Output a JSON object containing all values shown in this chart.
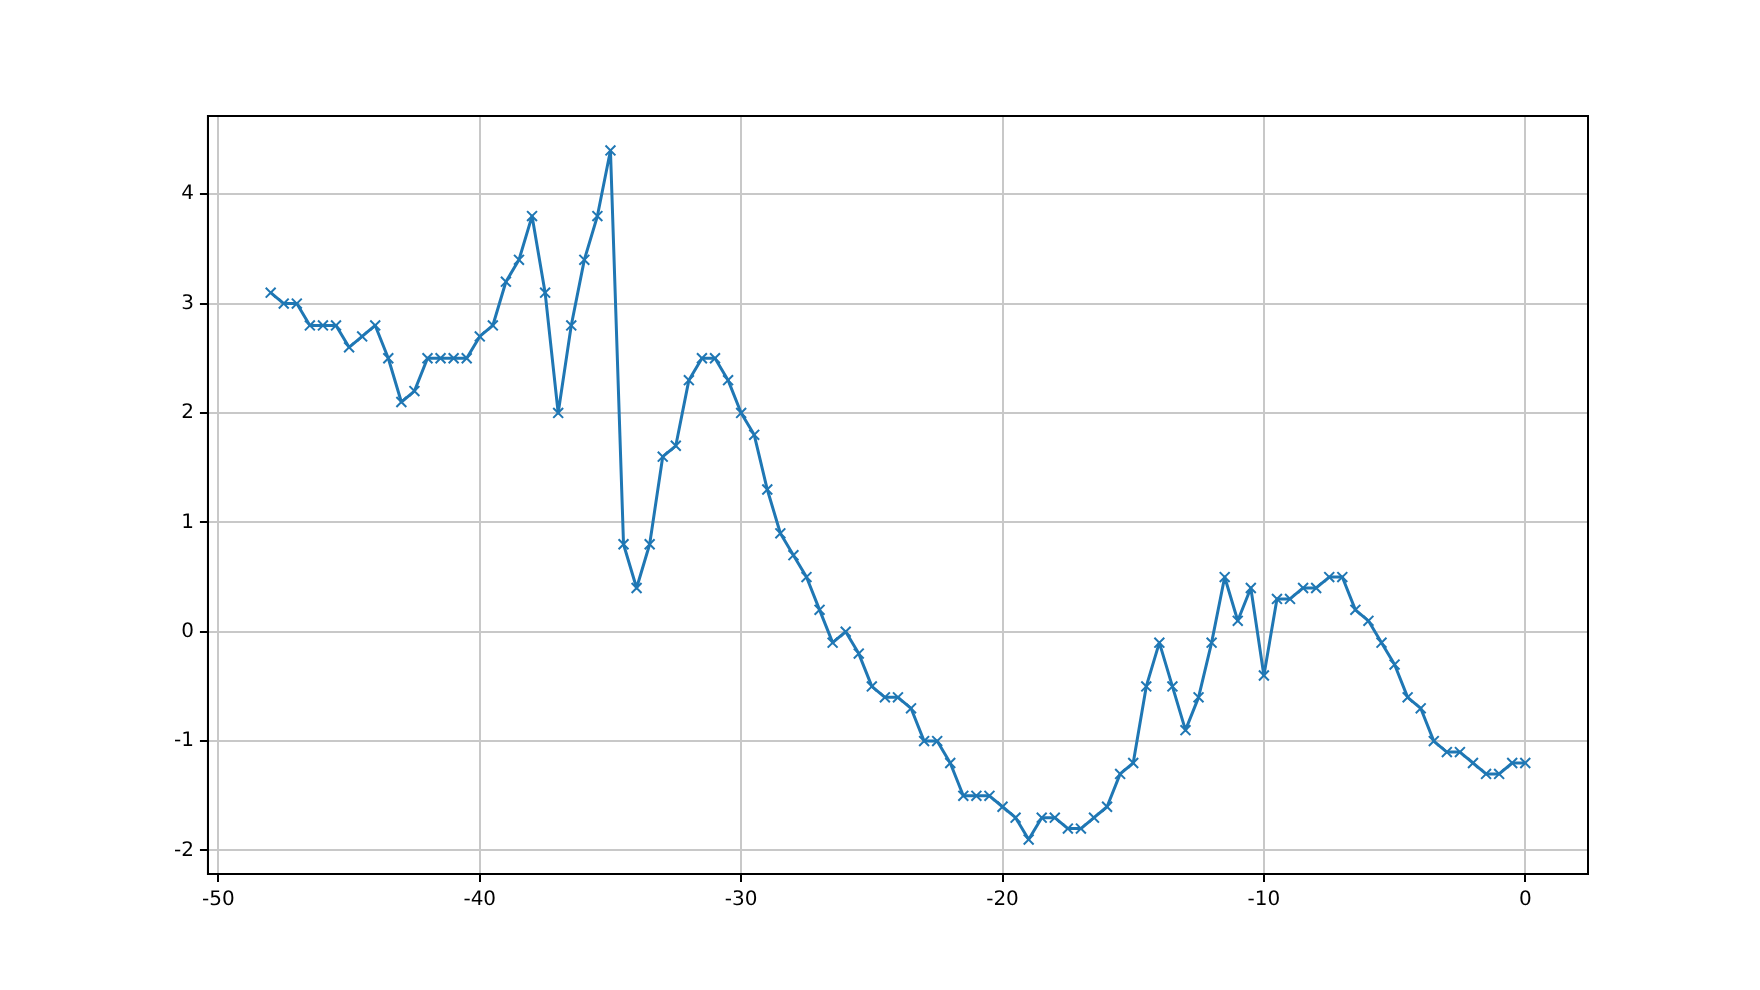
{
  "chart_data": {
    "type": "line",
    "marker": "cross",
    "line_style": "solid",
    "grid": true,
    "legend": false,
    "xlim": [
      -50.4,
      2.4
    ],
    "xticks": [
      -50,
      -40,
      -30,
      -20,
      -10,
      0
    ],
    "ylim": [
      -2.215,
      4.715
    ],
    "yticks": [
      -2,
      -1,
      0,
      1,
      2,
      3,
      4
    ],
    "x": [
      -48,
      -47.5,
      -47,
      -46.5,
      -46,
      -45.5,
      -45,
      -44.5,
      -44,
      -43.5,
      -43,
      -42.5,
      -42,
      -41.5,
      -41,
      -40.5,
      -40,
      -39.5,
      -39,
      -38.5,
      -38,
      -37.5,
      -37,
      -36.5,
      -36,
      -35.5,
      -35,
      -34.5,
      -34,
      -33.5,
      -33,
      -32.5,
      -32,
      -31.5,
      -31,
      -30.5,
      -30,
      -29.5,
      -29,
      -28.5,
      -28,
      -27.5,
      -27,
      -26.5,
      -26,
      -25.5,
      -25,
      -24.5,
      -24,
      -23.5,
      -23,
      -22.5,
      -22,
      -21.5,
      -21,
      -20.5,
      -20,
      -19.5,
      -19,
      -18.5,
      -18,
      -17.5,
      -17,
      -16.5,
      -16,
      -15.5,
      -15,
      -14.5,
      -14,
      -13.5,
      -13,
      -12.5,
      -12,
      -11.5,
      -11,
      -10.5,
      -10,
      -9.5,
      -9,
      -8.5,
      -8,
      -7.5,
      -7,
      -6.5,
      -6,
      -5.5,
      -5,
      -4.5,
      -4,
      -3.5,
      -3,
      -2.5,
      -2,
      -1.5,
      -1,
      -0.5,
      0
    ],
    "series": [
      {
        "color": "#1f77b4",
        "values": [
          3.1,
          3.0,
          3.0,
          2.8,
          2.8,
          2.8,
          2.6,
          2.7,
          2.8,
          2.5,
          2.1,
          2.2,
          2.5,
          2.5,
          2.5,
          2.5,
          2.7,
          2.8,
          3.2,
          3.4,
          3.8,
          3.1,
          2.0,
          2.8,
          3.4,
          3.8,
          4.4,
          0.8,
          0.4,
          0.8,
          1.6,
          1.7,
          2.3,
          2.5,
          2.5,
          2.3,
          2.0,
          1.8,
          1.3,
          0.9,
          0.7,
          0.5,
          0.2,
          -0.1,
          0.0,
          -0.2,
          -0.5,
          -0.6,
          -0.6,
          -0.7,
          -1.0,
          -1.0,
          -1.2,
          -1.5,
          -1.5,
          -1.5,
          -1.6,
          -1.7,
          -1.9,
          -1.7,
          -1.7,
          -1.8,
          -1.8,
          -1.7,
          -1.6,
          -1.3,
          -1.2,
          -0.5,
          -0.1,
          -0.5,
          -0.9,
          -0.6,
          -0.1,
          0.5,
          0.1,
          0.4,
          -0.4,
          0.3,
          0.3,
          0.4,
          0.4,
          0.5,
          0.5,
          0.2,
          0.1,
          -0.1,
          -0.3,
          -0.6,
          -0.7,
          -1.0,
          -1.1,
          -1.1,
          -1.2,
          -1.3,
          -1.3,
          -1.2,
          -1.2
        ]
      }
    ]
  }
}
